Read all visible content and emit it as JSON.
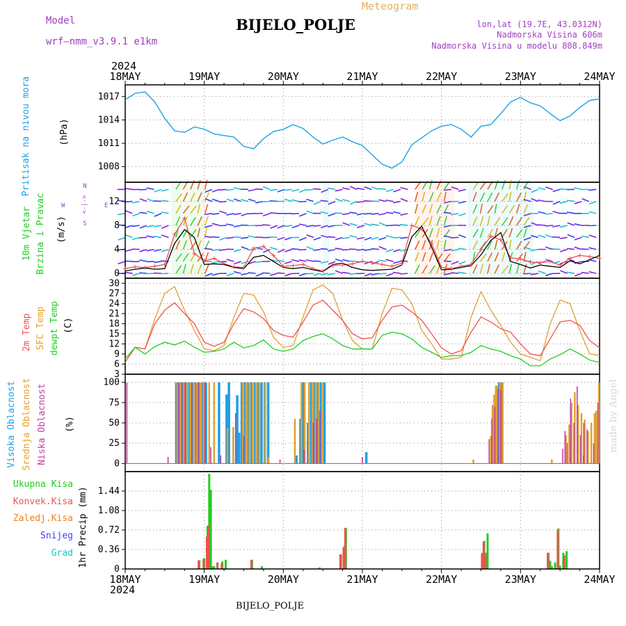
{
  "header": {
    "model_label": "Model",
    "model_name": "wrf–nmm_v3.9.1 e1km",
    "subtitle": "Meteogram",
    "station": "BIJELO_POLJE",
    "lonlat": "lon,lat (19.7E, 43.0312N)",
    "elev": "Nadmorska Visina 606m",
    "elev_model": "Nadmorska Visina u modelu 808.849m",
    "footer_station": "BIJELO_POLJE",
    "watermark": "made by Angel"
  },
  "time_axis": {
    "year": "2024",
    "labels": [
      "18MAY",
      "19MAY",
      "20MAY",
      "21MAY",
      "22MAY",
      "23MAY",
      "24MAY"
    ]
  },
  "colors": {
    "pressure": "#1ea0e6",
    "temp2m": "#f05050",
    "sfc": "#e0a030",
    "dew": "#22cc22",
    "high_cloud": "#1ea0e6",
    "mid_cloud": "#e0a030",
    "low_cloud": "#c040a0",
    "total_precip": "#22cc22",
    "convective": "#f05050",
    "freezing": "#f08020",
    "snow": "#4040ff",
    "hail": "#20c0c0"
  },
  "panels": {
    "pressure": {
      "label": "Pritisak na nivou mora",
      "unit": "(hPa)",
      "ticks": [
        "1008",
        "1011",
        "1014",
        "1017"
      ]
    },
    "wind": {
      "label1": "10m Vjetar",
      "label2": "Brzina i Pravac",
      "unit": "(m/s)",
      "ticks": [
        "0",
        "4",
        "8",
        "12"
      ],
      "compass_w": "W",
      "compass_e": "E",
      "compass_n": "N",
      "compass_s": "S",
      "compass_arrow": "<-|->"
    },
    "temp": {
      "label1": "2m Temp",
      "label2": "SFC Temp",
      "label3": "dewpt Temp",
      "unit": "(C)",
      "ticks": [
        "3",
        "6",
        "9",
        "12",
        "15",
        "18",
        "21",
        "24",
        "27",
        "30"
      ]
    },
    "cloud": {
      "label1": "Visoka Oblacnost",
      "label2": "Srednja Oblacnost",
      "label3": "Niska Oblacnost",
      "unit": "(%)",
      "ticks": [
        "0",
        "25",
        "50",
        "75",
        "100"
      ]
    },
    "precip": {
      "label1": "Ukupna Kisa",
      "label2": "Konvek.Kisa",
      "label3": "Zaledj.Kisa",
      "label4": "Snijeg",
      "label5": "Grad",
      "unit": "1hr Precip (mm)",
      "ticks": [
        "0",
        "0.36",
        "0.72",
        "1.08",
        "1.44"
      ]
    }
  },
  "chart_data": [
    {
      "type": "line",
      "title": "Pritisak na nivou mora",
      "ylabel": "(hPa)",
      "ylim": [
        1006.0,
        1018.5
      ],
      "x_hours": [
        0,
        3,
        6,
        9,
        12,
        15,
        18,
        21,
        24,
        27,
        30,
        33,
        36,
        39,
        42,
        45,
        48,
        51,
        54,
        57,
        60,
        63,
        66,
        69,
        72,
        75,
        78,
        81,
        84,
        87,
        90,
        93,
        96,
        99,
        102,
        105,
        108,
        111,
        114,
        117,
        120,
        123,
        126,
        129,
        132,
        135,
        138,
        141,
        144
      ],
      "series": [
        {
          "values": [
            1016.6,
            1017.4,
            1017.6,
            1016.3,
            1014.2,
            1012.6,
            1012.4,
            1013.1,
            1012.8,
            1012.2,
            1012.0,
            1011.8,
            1010.6,
            1010.3,
            1011.6,
            1012.5,
            1012.8,
            1013.4,
            1012.9,
            1011.8,
            1010.9,
            1011.4,
            1011.8,
            1011.2,
            1010.7,
            1009.5,
            1008.3,
            1007.8,
            1008.6,
            1010.8,
            1011.7,
            1012.6,
            1013.2,
            1013.4,
            1012.8,
            1011.8,
            1013.2,
            1013.4,
            1014.8,
            1016.3,
            1016.9,
            1016.2,
            1015.8,
            1014.8,
            1013.9,
            1014.5,
            1015.6,
            1016.5,
            1016.7
          ]
        }
      ]
    },
    {
      "type": "line",
      "title": "10m Vjetar Brzina i Pravac",
      "ylabel": "(m/s)",
      "ylim": [
        -0.8,
        15.2
      ],
      "x_hours": [
        0,
        3,
        6,
        9,
        12,
        15,
        18,
        21,
        24,
        27,
        30,
        33,
        36,
        39,
        42,
        45,
        48,
        51,
        54,
        57,
        60,
        63,
        66,
        69,
        72,
        75,
        78,
        81,
        84,
        87,
        90,
        93,
        96,
        99,
        102,
        105,
        108,
        111,
        114,
        117,
        120,
        123,
        126,
        129,
        132,
        135,
        138,
        141,
        144
      ],
      "series": [
        {
          "values": [
            0.8,
            1.1,
            1.0,
            1.2,
            1.5,
            6.5,
            9.2,
            3.3,
            2.1,
            2.5,
            1.6,
            1.1,
            1.0,
            4.2,
            4.5,
            3.0,
            1.2,
            1.3,
            1.5,
            0.8,
            0.4,
            1.3,
            1.4,
            1.6,
            2.0,
            1.8,
            1.5,
            1.2,
            1.7,
            8.0,
            7.4,
            5.0,
            1.0,
            0.8,
            1.2,
            1.5,
            4.0,
            6.2,
            5.6,
            2.6,
            2.4,
            1.9,
            1.8,
            2.0,
            1.4,
            2.5,
            3.0,
            2.8,
            2.5
          ]
        },
        {
          "values": [
            0.4,
            0.7,
            0.9,
            0.7,
            0.8,
            5.0,
            7.3,
            6.0,
            1.5,
            1.6,
            1.5,
            1.0,
            0.8,
            2.7,
            3.0,
            2.0,
            1.0,
            0.8,
            1.0,
            0.6,
            0.3,
            1.5,
            1.7,
            1.0,
            0.6,
            0.5,
            0.6,
            0.7,
            1.4,
            6.1,
            7.9,
            4.4,
            0.6,
            0.7,
            1.0,
            1.3,
            3.1,
            5.5,
            6.8,
            2.0,
            1.5,
            0.9,
            1.4,
            1.2,
            1.0,
            2.1,
            1.6,
            2.3,
            3.0
          ]
        }
      ]
    },
    {
      "type": "line",
      "title": "2m Temp / SFC Temp / dewpt Temp",
      "ylabel": "(C)",
      "ylim": [
        3,
        31.5
      ],
      "x_hours": [
        0,
        3,
        6,
        9,
        12,
        15,
        18,
        21,
        24,
        27,
        30,
        33,
        36,
        39,
        42,
        45,
        48,
        51,
        54,
        57,
        60,
        63,
        66,
        69,
        72,
        75,
        78,
        81,
        84,
        87,
        90,
        93,
        96,
        99,
        102,
        105,
        108,
        111,
        114,
        117,
        120,
        123,
        126,
        129,
        132,
        135,
        138,
        141,
        144
      ],
      "series": [
        {
          "name": "2m Temp",
          "values": [
            6.6,
            11.0,
            10.5,
            18.0,
            22.0,
            24.2,
            21.0,
            18.0,
            12.5,
            11.3,
            12.5,
            18.0,
            22.5,
            21.5,
            19.5,
            16.0,
            14.5,
            14.0,
            18.5,
            23.5,
            25.0,
            22.0,
            19.0,
            15.0,
            13.5,
            13.8,
            19.0,
            23.0,
            23.5,
            21.5,
            19.0,
            15.0,
            10.8,
            9.0,
            10.0,
            15.5,
            20.0,
            18.5,
            16.5,
            15.5,
            12.0,
            9.0,
            8.5,
            13.5,
            18.5,
            19.0,
            17.5,
            13.0,
            10.8
          ]
        },
        {
          "name": "SFC Temp",
          "values": [
            7.5,
            11.0,
            10.5,
            19.5,
            27.0,
            29.0,
            22.0,
            16.0,
            10.5,
            10.0,
            11.5,
            20.0,
            27.0,
            26.5,
            21.5,
            14.0,
            11.0,
            11.5,
            20.0,
            28.0,
            29.5,
            27.0,
            19.0,
            13.0,
            10.5,
            10.5,
            21.0,
            28.5,
            28.0,
            24.0,
            16.0,
            12.0,
            7.5,
            7.5,
            8.0,
            20.0,
            27.5,
            22.0,
            17.5,
            12.5,
            9.0,
            8.0,
            7.0,
            18.0,
            25.0,
            24.0,
            16.0,
            9.0,
            8.5
          ]
        },
        {
          "name": "dewpt Temp",
          "values": [
            7.5,
            11.0,
            9.0,
            11.2,
            12.5,
            11.7,
            12.8,
            11.0,
            9.5,
            9.8,
            10.5,
            12.5,
            10.8,
            11.5,
            13.2,
            10.5,
            9.8,
            10.5,
            13.0,
            14.2,
            15.0,
            13.5,
            11.5,
            10.5,
            10.5,
            10.5,
            14.5,
            15.5,
            15.0,
            13.5,
            11.0,
            9.5,
            8.0,
            8.5,
            8.5,
            9.5,
            11.5,
            10.5,
            9.8,
            8.5,
            7.5,
            5.5,
            5.5,
            7.5,
            8.8,
            10.5,
            9.0,
            7.2,
            6.5
          ]
        }
      ]
    },
    {
      "type": "bar",
      "title": "Visoka / Srednja / Niska Oblacnost",
      "ylabel": "(%)",
      "ylim": [
        0,
        100
      ],
      "series": [
        {
          "name": "Visoka Oblacnost",
          "x_hours": [
            15.5,
            16.5,
            17.5,
            18.5,
            19.5,
            20.5,
            21.5,
            22.5,
            23.5,
            24.5,
            28.5,
            30.8,
            31.5,
            34.0,
            34.6,
            35.4,
            36.4,
            37.4,
            38.4,
            39.4,
            40.4,
            41.4,
            42.4,
            43.4,
            52.0,
            53.2,
            54.0,
            55.5,
            56.5,
            57.5,
            58.5,
            59.5,
            60.5,
            73.2,
            111.2,
            111.7,
            112.4,
            112.8,
            113.5,
            114.4,
            139.3
          ],
          "values": [
            100,
            100,
            100,
            100,
            100,
            100,
            100,
            100,
            100,
            100,
            100,
            85,
            100,
            84,
            38,
            100,
            100,
            100,
            100,
            100,
            100,
            100,
            100,
            100,
            10,
            55,
            100,
            50,
            100,
            100,
            100,
            100,
            100,
            14,
            28,
            58,
            65,
            75,
            100,
            100,
            10
          ]
        },
        {
          "name": "Srednja Oblacnost",
          "x_hours": [
            15.8,
            16.8,
            17.8,
            18.8,
            19.8,
            20.8,
            21.8,
            22.8,
            23.8,
            25.5,
            27.0,
            31.0,
            32.8,
            35.7,
            36.7,
            37.7,
            38.7,
            39.7,
            40.7,
            42.5,
            43.5,
            51.5,
            53.5,
            54.5,
            55.8,
            56.8,
            57.8,
            58.8,
            59.8,
            105.7,
            111.0,
            111.5,
            112.0,
            112.5,
            113.0,
            113.8,
            114.6,
            129.5,
            133.8,
            134.8,
            135.5,
            136.5,
            137.5,
            138.5,
            139.5,
            140.5,
            141.5,
            142.5,
            143.0,
            143.8
          ],
          "values": [
            100,
            100,
            100,
            100,
            100,
            100,
            100,
            100,
            100,
            100,
            100,
            44,
            45,
            100,
            100,
            100,
            100,
            100,
            100,
            100,
            8,
            55,
            100,
            100,
            100,
            100,
            100,
            100,
            100,
            5,
            34,
            72,
            85,
            96,
            96,
            100,
            100,
            5,
            35,
            48,
            75,
            88,
            72,
            62,
            54,
            40,
            50,
            62,
            65,
            100
          ]
        },
        {
          "name": "Niska Oblacnost",
          "x_hours": [
            0.5,
            13.0,
            16.2,
            17.2,
            18.2,
            20.2,
            22.2,
            24.2,
            26.0,
            29.0,
            33.5,
            36.0,
            47.0,
            54.3,
            57.1,
            58.1,
            59.1,
            72.0,
            110.5,
            111.3,
            112.2,
            113.2,
            114.0,
            132.8,
            133.5,
            134.2,
            135.2,
            136.2,
            137.2,
            138.2,
            139.2,
            140.2,
            142.2,
            143.5
          ],
          "values": [
            100,
            8,
            100,
            100,
            100,
            100,
            100,
            100,
            20,
            10,
            62,
            34,
            5,
            17,
            50,
            55,
            65,
            8,
            30,
            55,
            70,
            92,
            90,
            18,
            40,
            25,
            80,
            50,
            95,
            35,
            50,
            42,
            25,
            75
          ]
        }
      ]
    },
    {
      "type": "bar",
      "title": "1hr Precip",
      "ylabel": "1hr Precip (mm)",
      "ylim": [
        0,
        1.8
      ],
      "series": [
        {
          "name": "Ukupna Kisa",
          "x_hours": [
            22.5,
            24.0,
            25.0,
            25.5,
            26.0,
            26.5,
            27.0,
            28.0,
            29.5,
            30.5,
            38.5,
            41.5,
            59.0,
            65.5,
            66.5,
            67.0,
            108.5,
            109.0,
            109.5,
            110.0,
            128.5,
            129.0,
            129.5,
            130.5,
            131.5,
            132.0,
            133.0,
            134.0
          ],
          "values": [
            0.16,
            0.2,
            0.8,
            1.76,
            1.46,
            0.05,
            0.05,
            0.12,
            0.14,
            0.17,
            0.17,
            0.05,
            0.03,
            0.27,
            0.42,
            0.76,
            0.3,
            0.52,
            0.3,
            0.66,
            0.3,
            0.15,
            0.05,
            0.12,
            0.75,
            0.06,
            0.3,
            0.33
          ]
        },
        {
          "name": "Konvek.Kisa",
          "x_hours": [
            22.3,
            23.8,
            24.8,
            25.3,
            28.0,
            29.3,
            38.3,
            65.3,
            66.3,
            66.8,
            108.3,
            108.8,
            109.3,
            128.3,
            131.3,
            133.3
          ],
          "values": [
            0.16,
            0.18,
            0.6,
            0.8,
            0.12,
            0.1,
            0.17,
            0.27,
            0.4,
            0.76,
            0.28,
            0.5,
            0.28,
            0.3,
            0.72,
            0.25
          ]
        }
      ]
    }
  ]
}
